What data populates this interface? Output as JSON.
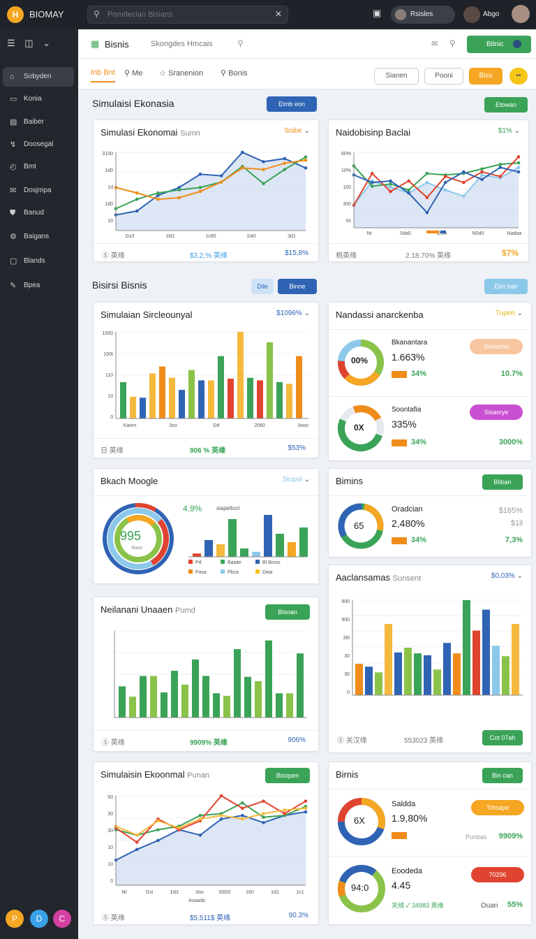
{
  "topbar": {
    "logo": "H",
    "brand": "BIOMAY",
    "search_placeholder": "Pomdecian Bisians",
    "workspace": "Rsisles",
    "user": "Abgo"
  },
  "sidebar": {
    "items": [
      {
        "label": "Sobyden",
        "icon": "home-icon"
      },
      {
        "label": "Konia",
        "icon": "card-icon"
      },
      {
        "label": "Baiber",
        "icon": "doc-icon"
      },
      {
        "label": "Doosegal",
        "icon": "split-icon"
      },
      {
        "label": "Bmt",
        "icon": "clock-icon"
      },
      {
        "label": "Dosjmpa",
        "icon": "chat-icon"
      },
      {
        "label": "Banud",
        "icon": "shield-icon"
      },
      {
        "label": "Baigans",
        "icon": "gear-icon"
      },
      {
        "label": "Blands",
        "icon": "box-icon"
      },
      {
        "label": "Bpea",
        "icon": "pen-icon"
      }
    ],
    "fabs": [
      "P",
      "D",
      "C"
    ]
  },
  "header": {
    "title": "Bisnis",
    "crumb": "Skongdes Hmcais",
    "button": "Bitnic"
  },
  "tabs": [
    "Inb Bnt",
    "Me",
    "Sranenion",
    "Bonis"
  ],
  "tabpills": [
    "Sianen",
    "Pooni",
    "Biss"
  ],
  "sections": {
    "s1": "Simulaisi Ekonasia",
    "s1_btn": "Elmb eon",
    "s1_btn2": "Etowan",
    "s2": "Bisirsi Bisnis",
    "s2_pill": "Dile",
    "s2_btn": "Binne",
    "s2_btn2": "Elm ban"
  },
  "cards": {
    "c1": {
      "title": "Simulasi Ekonomai",
      "sub": "Sumn",
      "value": "Snibe",
      "foot": [
        "Ⓢ 英缘",
        "$3,2,% 英缘",
        "$15,8%"
      ],
      "xlabels": [
        "Gs3",
        "1ld1",
        "1c80",
        "1l40",
        "3d1"
      ],
      "ylabels": [
        "3100",
        "1d0",
        "1d",
        "1d0",
        "10"
      ]
    },
    "c2": {
      "title": "Naidobisinp Baclai",
      "value": "$1%",
      "foot": [
        "梢英缘",
        "2.18.70% 英缘",
        "$7%"
      ],
      "xlabels": [
        "Nt",
        "0da0",
        "OSA",
        "N0d0",
        "Nadaa"
      ],
      "ylabels": [
        "60%",
        "10%",
        "100",
        "300",
        "0s"
      ]
    },
    "c3": {
      "title": "Simulaian Sircleounyal",
      "value": "$1096%",
      "foot": [
        "日 英缘",
        "906 % 英缘",
        "$53%"
      ],
      "xlabels": [
        "Kanm",
        "3oo",
        "Dd",
        "2060",
        "3ooo"
      ],
      "ylabels": [
        "1000",
        "100t",
        "110",
        "10",
        "0"
      ]
    },
    "c4": {
      "title": "Nandassi anarckenba",
      "value": "Tupen",
      "rows": [
        {
          "name": "Bkanantara",
          "big": "1.663%",
          "pct": "34%",
          "right": "10.7%",
          "chip": "Sisiasrse",
          "ring": "00%"
        },
        {
          "name": "Soontafia",
          "big": "335%",
          "pct": "34%",
          "right": "3000%",
          "chip": "Sisasrye",
          "ring": "0X"
        }
      ]
    },
    "c5": {
      "title": "Bkach Moogle",
      "value": "Stupol",
      "ring": "995",
      "ringsub": "Suus",
      "pct": "4.9%",
      "pctlabel": "siapeltoci",
      "legend": [
        "Pd",
        "Baaite",
        "Pasa",
        "Pbca",
        "Daia",
        "Bl Binos"
      ]
    },
    "c6": {
      "title": "Bimins",
      "button": "Bliban",
      "name": "Oradcian",
      "big": "2,480%",
      "pct": "34%",
      "r1": "$165%",
      "r2": "$1il",
      "r3": "7,3%",
      "ring": "65"
    },
    "c7": {
      "title": "Neilanani Unaaen",
      "sub": "Pumd",
      "button": "Bisoan",
      "foot": [
        "Ⓢ 英缘",
        "9909% 英缘",
        "906%"
      ]
    },
    "c8": {
      "title": "Aaclansamas",
      "sub": "Sunsent",
      "value": "$0,03%",
      "ylabels": [
        "900",
        "900",
        "3l0",
        "30",
        "30",
        "0"
      ],
      "foot": [
        "Ⓢ 关汉缘",
        "553023 英缘"
      ],
      "button": "Cot 07ah"
    },
    "c9": {
      "title": "Simulaisin Ekoonmal",
      "sub": "Punan",
      "button": "Bisopen",
      "ylabels": [
        "50",
        "30",
        "30",
        "10",
        "10",
        "0"
      ],
      "xlabels": [
        "Nt",
        "Gsi",
        "1ld1",
        "3oo",
        "00D0",
        "160",
        "1d1",
        "1c1"
      ],
      "xtitle": "Asaada",
      "foot": [
        "Ⓢ 英缘",
        "$5,511$ 英缘",
        "90.3%"
      ]
    },
    "c10": {
      "title": "Birnis",
      "button": "Bin can",
      "rows": [
        {
          "name": "Saldda",
          "big": "1.9,80%",
          "right": "9909%",
          "chip": "Trbsape",
          "ring": "6X",
          "left": "Punbas"
        },
        {
          "name": "Eoodeda",
          "big": "4.45",
          "right": "55%",
          "chip": "70296",
          "ring": "94:0",
          "left": "Ouan",
          "foot": "关绒 ✓ 34983 英缘"
        }
      ]
    }
  },
  "chart_data": [
    {
      "type": "line",
      "title": "Simulasi Ekonomai",
      "series": [
        {
          "name": "",
          "values": [
            20,
            40,
            30,
            55,
            70,
            60,
            85,
            80,
            75
          ]
        }
      ]
    }
  ],
  "colors": {
    "green": "#3aa357",
    "blue": "#2f63b4",
    "orange": "#f08c1a",
    "yellow": "#f5b93d",
    "red": "#e0432f",
    "lightblue": "#8cc8ea"
  }
}
